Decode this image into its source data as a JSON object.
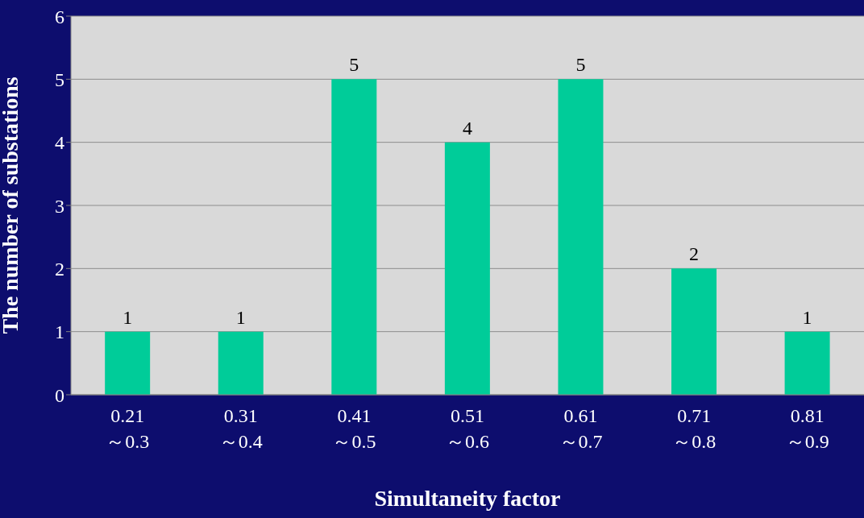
{
  "chart_data": {
    "type": "bar",
    "xlabel": "Simultaneity factor",
    "ylabel": "The number of substations",
    "categories": [
      "0.21\n～0.3",
      "0.31\n～0.4",
      "0.41\n～0.5",
      "0.51\n～0.6",
      "0.61\n～0.7",
      "0.71\n～0.8",
      "0.81\n～0.9"
    ],
    "values": [
      1,
      1,
      5,
      4,
      5,
      2,
      1
    ],
    "color": "#00cc99",
    "ylim": [
      0,
      6
    ],
    "yticks": [
      0,
      1,
      2,
      3,
      4,
      5,
      6
    ],
    "grid": "y",
    "data_labels": true
  }
}
